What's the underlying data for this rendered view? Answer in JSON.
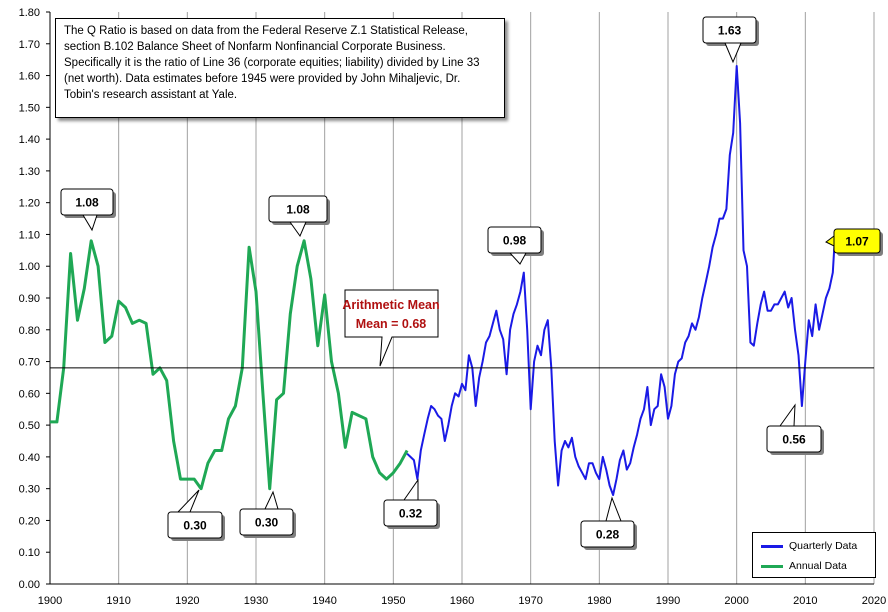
{
  "note": {
    "text": "The Q Ratio is based on data from the Federal Reserve Z.1 Statistical Release, section B.102 Balance Sheet of Nonfarm Nonfinancial Corporate Business. Specifically it is the ratio of Line 36 (corporate equities; liability) divided by Line 33 (net worth).  Data estimates before 1945 were provided by John Mihaljevic, Dr. Tobin's research assistant at Yale."
  },
  "legend": {
    "quarterly_label": "Quarterly Data",
    "annual_label": "Annual Data"
  },
  "colors": {
    "quarterly": "#1a1ae6",
    "annual": "#1fa855",
    "mean_text": "#b01010",
    "latest_highlight": "#ffff00"
  },
  "chart_data": {
    "type": "line",
    "title": "",
    "xlabel": "",
    "ylabel": "",
    "xlim": [
      1900,
      2020
    ],
    "ylim": [
      0.0,
      1.8
    ],
    "x_ticks": [
      "1900",
      "1910",
      "1920",
      "1930",
      "1940",
      "1950",
      "1960",
      "1970",
      "1980",
      "1990",
      "2000",
      "2010",
      "2020"
    ],
    "y_ticks": [
      "0.00",
      "0.10",
      "0.20",
      "0.30",
      "0.40",
      "0.50",
      "0.60",
      "0.70",
      "0.80",
      "0.90",
      "1.00",
      "1.10",
      "1.20",
      "1.30",
      "1.40",
      "1.50",
      "1.60",
      "1.70",
      "1.80"
    ],
    "grid": "vertical",
    "legend_position": "bottom-right",
    "mean": {
      "value": 0.68,
      "label": "Arithmetic Mean = 0.68"
    },
    "series": [
      {
        "name": "Annual Data",
        "x": [
          1900,
          1901,
          1902,
          1903,
          1904,
          1905,
          1906,
          1907,
          1908,
          1909,
          1910,
          1911,
          1912,
          1913,
          1914,
          1915,
          1916,
          1917,
          1918,
          1919,
          1920,
          1921,
          1922,
          1923,
          1924,
          1925,
          1926,
          1927,
          1928,
          1929,
          1930,
          1931,
          1932,
          1933,
          1934,
          1935,
          1936,
          1937,
          1938,
          1939,
          1940,
          1941,
          1942,
          1943,
          1944,
          1945,
          1946,
          1947,
          1948,
          1949,
          1950,
          1951,
          1952
        ],
        "values": [
          0.51,
          0.51,
          0.68,
          1.04,
          0.83,
          0.93,
          1.08,
          1.0,
          0.76,
          0.78,
          0.89,
          0.87,
          0.82,
          0.83,
          0.82,
          0.66,
          0.68,
          0.64,
          0.45,
          0.33,
          0.33,
          0.33,
          0.3,
          0.38,
          0.42,
          0.42,
          0.52,
          0.56,
          0.68,
          1.06,
          0.92,
          0.6,
          0.3,
          0.58,
          0.6,
          0.85,
          1.0,
          1.08,
          0.96,
          0.75,
          0.91,
          0.7,
          0.6,
          0.43,
          0.54,
          0.53,
          0.52,
          0.4,
          0.35,
          0.33,
          0.35,
          0.38,
          0.42
        ]
      },
      {
        "name": "Quarterly Data",
        "x": [
          1952.0,
          1952.5,
          1953.0,
          1953.5,
          1954.0,
          1954.5,
          1955.0,
          1955.5,
          1956.0,
          1956.5,
          1957.0,
          1957.5,
          1958.0,
          1958.5,
          1959.0,
          1959.5,
          1960.0,
          1960.5,
          1961.0,
          1961.5,
          1962.0,
          1962.5,
          1963.0,
          1963.5,
          1964.0,
          1964.5,
          1965.0,
          1965.5,
          1966.0,
          1966.5,
          1967.0,
          1967.5,
          1968.0,
          1968.5,
          1969.0,
          1969.5,
          1970.0,
          1970.5,
          1971.0,
          1971.5,
          1972.0,
          1972.5,
          1973.0,
          1973.5,
          1974.0,
          1974.5,
          1975.0,
          1975.5,
          1976.0,
          1976.5,
          1977.0,
          1977.5,
          1978.0,
          1978.5,
          1979.0,
          1979.5,
          1980.0,
          1980.5,
          1981.0,
          1981.5,
          1982.0,
          1982.5,
          1983.0,
          1983.5,
          1984.0,
          1984.5,
          1985.0,
          1985.5,
          1986.0,
          1986.5,
          1987.0,
          1987.5,
          1988.0,
          1988.5,
          1989.0,
          1989.5,
          1990.0,
          1990.5,
          1991.0,
          1991.5,
          1992.0,
          1992.5,
          1993.0,
          1993.5,
          1994.0,
          1994.5,
          1995.0,
          1995.5,
          1996.0,
          1996.5,
          1997.0,
          1997.5,
          1998.0,
          1998.5,
          1999.0,
          1999.5,
          2000.0,
          2000.5,
          2001.0,
          2001.5,
          2002.0,
          2002.5,
          2003.0,
          2003.5,
          2004.0,
          2004.5,
          2005.0,
          2005.5,
          2006.0,
          2006.5,
          2007.0,
          2007.5,
          2008.0,
          2008.5,
          2009.0,
          2009.5,
          2010.0,
          2010.5,
          2011.0,
          2011.5,
          2012.0,
          2012.5,
          2013.0,
          2013.5,
          2014.0,
          2014.25
        ],
        "values": [
          0.41,
          0.4,
          0.39,
          0.33,
          0.42,
          0.47,
          0.52,
          0.56,
          0.55,
          0.53,
          0.52,
          0.45,
          0.5,
          0.56,
          0.6,
          0.59,
          0.63,
          0.61,
          0.72,
          0.68,
          0.56,
          0.65,
          0.7,
          0.76,
          0.78,
          0.82,
          0.86,
          0.8,
          0.77,
          0.66,
          0.8,
          0.85,
          0.88,
          0.92,
          0.98,
          0.8,
          0.55,
          0.7,
          0.75,
          0.72,
          0.8,
          0.83,
          0.68,
          0.45,
          0.31,
          0.42,
          0.45,
          0.43,
          0.46,
          0.4,
          0.37,
          0.35,
          0.33,
          0.38,
          0.38,
          0.35,
          0.33,
          0.4,
          0.36,
          0.31,
          0.28,
          0.33,
          0.39,
          0.42,
          0.36,
          0.38,
          0.43,
          0.47,
          0.52,
          0.55,
          0.62,
          0.5,
          0.55,
          0.56,
          0.66,
          0.62,
          0.52,
          0.56,
          0.66,
          0.7,
          0.71,
          0.76,
          0.78,
          0.82,
          0.8,
          0.84,
          0.9,
          0.95,
          1.0,
          1.06,
          1.1,
          1.15,
          1.15,
          1.18,
          1.35,
          1.42,
          1.63,
          1.45,
          1.05,
          1.0,
          0.76,
          0.75,
          0.82,
          0.88,
          0.92,
          0.86,
          0.86,
          0.88,
          0.88,
          0.9,
          0.92,
          0.87,
          0.9,
          0.8,
          0.72,
          0.56,
          0.7,
          0.83,
          0.78,
          0.88,
          0.8,
          0.85,
          0.9,
          0.93,
          0.98,
          1.07
        ]
      }
    ],
    "annotations": [
      {
        "label": "1.08",
        "x": 1906,
        "y": 1.08
      },
      {
        "label": "1.08",
        "x": 1937,
        "y": 1.08
      },
      {
        "label": "0.98",
        "x": 1969,
        "y": 0.98
      },
      {
        "label": "1.63",
        "x": 2000,
        "y": 1.63
      },
      {
        "label": "0.30",
        "x": 1922,
        "y": 0.3
      },
      {
        "label": "0.30",
        "x": 1932,
        "y": 0.3
      },
      {
        "label": "0.32",
        "x": 1953,
        "y": 0.32
      },
      {
        "label": "0.28",
        "x": 1982,
        "y": 0.28
      },
      {
        "label": "0.56",
        "x": 2009,
        "y": 0.56
      },
      {
        "label": "1.07",
        "x": 2014,
        "y": 1.07
      }
    ]
  }
}
